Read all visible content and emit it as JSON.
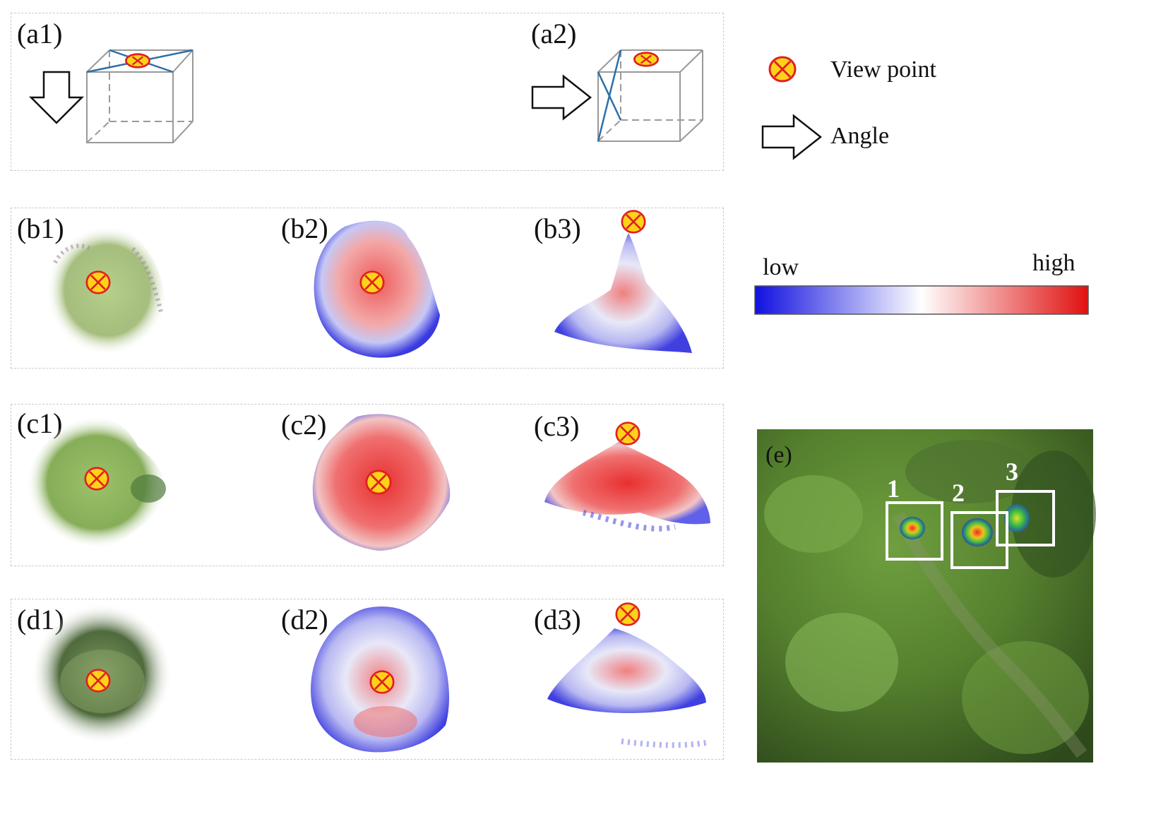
{
  "panels": {
    "a1": "(a1)",
    "a2": "(a2)",
    "b1": "(b1)",
    "b2": "(b2)",
    "b3": "(b3)",
    "c1": "(c1)",
    "c2": "(c2)",
    "c3": "(c3)",
    "d1": "(d1)",
    "d2": "(d2)",
    "d3": "(d3)",
    "e": "(e)"
  },
  "legend": {
    "view_point": "View point",
    "angle": "Angle"
  },
  "colorbar": {
    "low": "low",
    "high": "high",
    "colors": {
      "low": "#1010e0",
      "mid": "#ffffff",
      "high": "#e01010"
    }
  },
  "aerial": {
    "box_labels": [
      "1",
      "2",
      "3"
    ]
  },
  "colors": {
    "viewpoint_fill": "#ffd21a",
    "viewpoint_stroke": "#e02020",
    "cube_edge": "#999999",
    "cube_diag": "#2c6fa8"
  }
}
